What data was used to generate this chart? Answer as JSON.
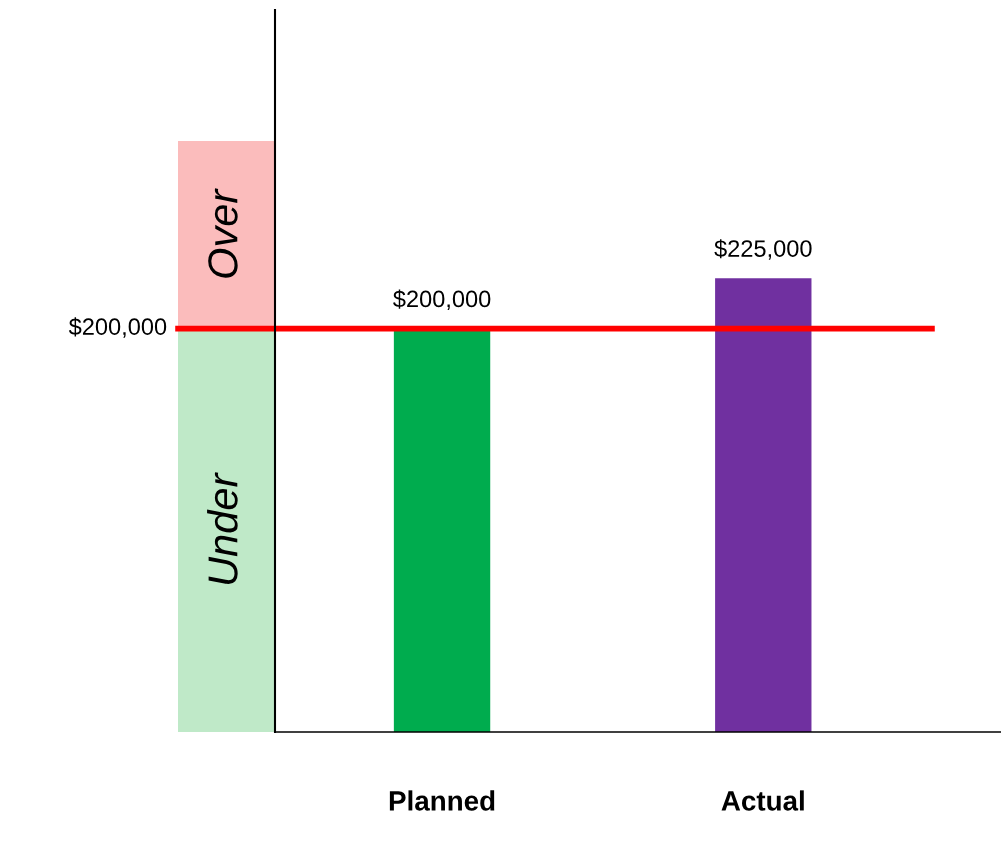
{
  "chart_data": {
    "type": "bar",
    "categories": [
      "Planned",
      "Actual"
    ],
    "values": [
      200000,
      225000
    ],
    "colors": [
      "#00ac4e",
      "#7030a0"
    ],
    "value_labels": [
      "$200,000",
      "$225,000"
    ],
    "ylim": [
      0,
      358000
    ],
    "ref_lines": [
      {
        "axis": "y",
        "value": 200000,
        "label": "$200,000",
        "color": "#ff0000"
      }
    ],
    "bands": [
      {
        "axis": "y",
        "from": 200000,
        "to": 293000,
        "label": "Over",
        "color": "#fbbcbc"
      },
      {
        "axis": "y",
        "from": 0,
        "to": 200000,
        "label": "Under",
        "color": "#bfe9c8"
      }
    ],
    "grid": false,
    "legend": false
  }
}
